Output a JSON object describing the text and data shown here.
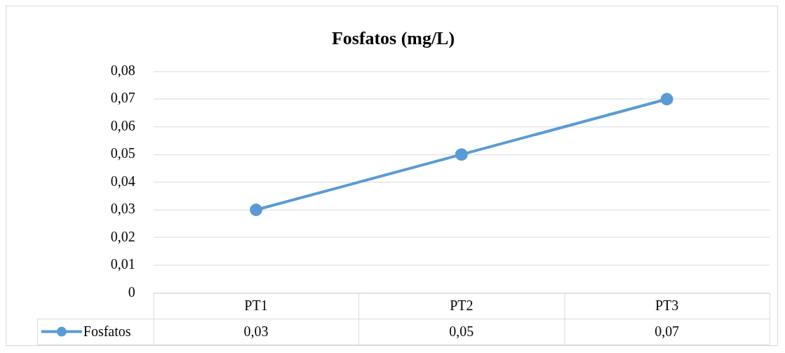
{
  "chart_data": {
    "type": "line",
    "title": "Fosfatos (mg/L)",
    "categories": [
      "PT1",
      "PT2",
      "PT3"
    ],
    "series": [
      {
        "name": "Fosfatos",
        "color": "#5b9bd5",
        "values": [
          0.03,
          0.05,
          0.07
        ],
        "value_labels": [
          "0,03",
          "0,05",
          "0,07"
        ]
      }
    ],
    "ylim": [
      0,
      0.08
    ],
    "yticks": [
      0,
      {
        "value": 0.01,
        "label": "0,01"
      },
      {
        "value": 0.02,
        "label": "0,02"
      },
      {
        "value": 0.03,
        "label": "0,03"
      },
      {
        "value": 0.04,
        "label": "0,04"
      },
      {
        "value": 0.05,
        "label": "0,05"
      },
      {
        "value": 0.06,
        "label": "0,06"
      },
      {
        "value": 0.07,
        "label": "0,07"
      },
      {
        "value": 0.08,
        "label": "0,08"
      }
    ],
    "grid": "y",
    "legend": "bottom left",
    "marker": "circle",
    "line_style": "solid"
  }
}
